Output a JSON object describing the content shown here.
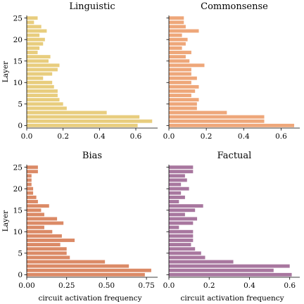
{
  "figure": {
    "ylabel": "Layer",
    "xlabel": "circuit activation frequency"
  },
  "chart_data": [
    {
      "type": "bar",
      "orientation": "horizontal",
      "title": "Linguistic",
      "color": "#e8cd7e",
      "categories": [
        0,
        1,
        2,
        3,
        4,
        5,
        6,
        7,
        8,
        9,
        10,
        11,
        12,
        13,
        14,
        15,
        16,
        17,
        18,
        19,
        20,
        21,
        22,
        23,
        24,
        25
      ],
      "values": [
        0.61,
        0.69,
        0.62,
        0.44,
        0.22,
        0.2,
        0.18,
        0.17,
        0.17,
        0.15,
        0.14,
        0.09,
        0.14,
        0.17,
        0.18,
        0.12,
        0.13,
        0.06,
        0.07,
        0.09,
        0.1,
        0.07,
        0.11,
        0.08,
        0.04,
        0.06
      ],
      "xlim": [
        0,
        0.72
      ],
      "ylim": [
        -0.6,
        25.6
      ],
      "xticks": [
        0.0,
        0.2,
        0.4,
        0.6
      ],
      "xtick_labels": [
        "0.0",
        "0.2",
        "0.4",
        "0.6"
      ],
      "yticks": [
        0,
        5,
        10,
        15,
        20,
        25
      ],
      "ytick_labels": [
        "0",
        "5",
        "10",
        "15",
        "20",
        "25"
      ]
    },
    {
      "type": "bar",
      "orientation": "horizontal",
      "title": "Commonsense",
      "color": "#eea77a",
      "categories": [
        0,
        1,
        2,
        3,
        4,
        5,
        6,
        7,
        8,
        9,
        10,
        11,
        12,
        13,
        14,
        15,
        16,
        17,
        18,
        19,
        20,
        21,
        22,
        23,
        24,
        25
      ],
      "values": [
        0.67,
        0.51,
        0.51,
        0.31,
        0.15,
        0.15,
        0.16,
        0.12,
        0.14,
        0.16,
        0.12,
        0.15,
        0.12,
        0.12,
        0.19,
        0.11,
        0.09,
        0.12,
        0.07,
        0.09,
        0.1,
        0.07,
        0.16,
        0.09,
        0.08,
        0.08
      ],
      "xlim": [
        0,
        0.7
      ],
      "ylim": [
        -0.6,
        25.6
      ],
      "xticks": [
        0.0,
        0.2,
        0.4,
        0.6
      ],
      "xtick_labels": [
        "0.0",
        "0.2",
        "0.4",
        "0.6"
      ],
      "yticks": [
        0,
        5,
        10,
        15,
        20,
        25
      ],
      "ytick_labels": []
    },
    {
      "type": "bar",
      "orientation": "horizontal",
      "title": "Bias",
      "color": "#db8a66",
      "categories": [
        0,
        1,
        2,
        3,
        4,
        5,
        6,
        7,
        8,
        9,
        10,
        11,
        12,
        13,
        14,
        15,
        16,
        17,
        18,
        19,
        20,
        21,
        22,
        23,
        24,
        25
      ],
      "values": [
        0.74,
        0.78,
        0.64,
        0.49,
        0.27,
        0.25,
        0.25,
        0.21,
        0.3,
        0.22,
        0.16,
        0.11,
        0.23,
        0.19,
        0.11,
        0.09,
        0.14,
        0.07,
        0.06,
        0.04,
        0.04,
        0.03,
        0.03,
        0.03,
        0.07,
        0.07
      ],
      "xlim": [
        0,
        0.82
      ],
      "ylim": [
        -0.6,
        25.6
      ],
      "xticks": [
        0.0,
        0.25,
        0.5,
        0.75
      ],
      "xtick_labels": [
        "0.00",
        "0.25",
        "0.50",
        "0.75"
      ],
      "yticks": [
        0,
        5,
        10,
        15,
        20,
        25
      ],
      "ytick_labels": [
        "0",
        "5",
        "10",
        "15",
        "20",
        "25"
      ]
    },
    {
      "type": "bar",
      "orientation": "horizontal",
      "title": "Factual",
      "color": "#a8779f",
      "categories": [
        0,
        1,
        2,
        3,
        4,
        5,
        6,
        7,
        8,
        9,
        10,
        11,
        12,
        13,
        14,
        15,
        16,
        17,
        18,
        19,
        20,
        21,
        22,
        23,
        24,
        25
      ],
      "values": [
        0.61,
        0.52,
        0.6,
        0.32,
        0.18,
        0.16,
        0.13,
        0.11,
        0.12,
        0.12,
        0.12,
        0.05,
        0.12,
        0.14,
        0.08,
        0.13,
        0.17,
        0.05,
        0.08,
        0.06,
        0.1,
        0.06,
        0.09,
        0.08,
        0.12,
        0.12
      ],
      "xlim": [
        0,
        0.65
      ],
      "ylim": [
        -0.6,
        25.6
      ],
      "xticks": [
        0.0,
        0.2,
        0.4,
        0.6
      ],
      "xtick_labels": [
        "0.0",
        "0.2",
        "0.4",
        "0.6"
      ],
      "yticks": [
        0,
        5,
        10,
        15,
        20,
        25
      ],
      "ytick_labels": []
    }
  ]
}
